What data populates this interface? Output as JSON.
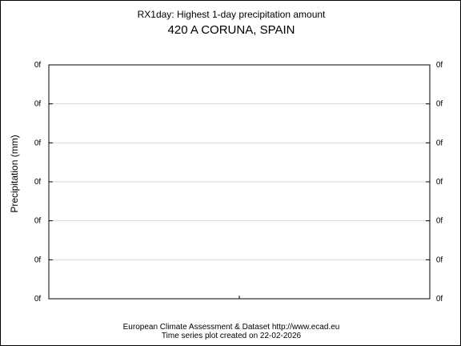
{
  "chart_data": {
    "type": "line",
    "title": "RX1day: Highest 1-day precipitation amount",
    "subtitle": "420 A CORUNA, SPAIN",
    "ylabel": "Precipitation (mm)",
    "xlabel": "",
    "y_tick_labels": [
      "0f",
      "0f",
      "0f",
      "0f",
      "0f",
      "0f",
      "0f"
    ],
    "x_tick_labels": [],
    "grid": true,
    "series": [],
    "legend": "none"
  },
  "footer": {
    "line1": "European Climate Assessment & Dataset  http://www.ecad.eu",
    "line2": "Time series plot created on 22-02-2026"
  },
  "colors": {
    "axis": "#000000",
    "grid": "#d8d8d8",
    "background": "#ffffff"
  }
}
